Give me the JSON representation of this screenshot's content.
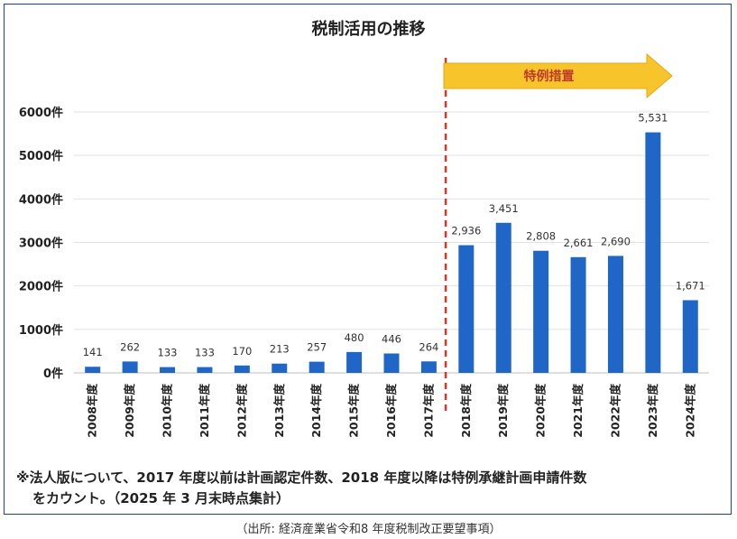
{
  "chart_data": {
    "type": "bar",
    "title": "税制活用の推移",
    "categories": [
      "2008年度",
      "2009年度",
      "2010年度",
      "2011年度",
      "2012年度",
      "2013年度",
      "2014年度",
      "2015年度",
      "2016年度",
      "2017年度",
      "2018年度",
      "2019年度",
      "2020年度",
      "2021年度",
      "2022年度",
      "2023年度",
      "2024年度"
    ],
    "values": [
      141,
      262,
      133,
      133,
      170,
      213,
      257,
      480,
      446,
      264,
      2936,
      3451,
      2808,
      2661,
      2690,
      5531,
      1671
    ],
    "data_labels": [
      "141",
      "262",
      "133",
      "133",
      "170",
      "213",
      "257",
      "480",
      "446",
      "264",
      "2,936",
      "3,451",
      "2,808",
      "2,661",
      "2,690",
      "5,531",
      "1,671"
    ],
    "ytick_labels": [
      "0件",
      "1000件",
      "2000件",
      "3000件",
      "4000件",
      "5000件",
      "6000件"
    ],
    "yticks": [
      0,
      1000,
      2000,
      3000,
      4000,
      5000,
      6000
    ],
    "ylim": [
      0,
      6000
    ],
    "grid": true,
    "bar_color": "#1f66c7",
    "annotation": {
      "label": "特例措置",
      "divider_after": "2017年度",
      "divider_color": "#e0342b",
      "arrow_color": "#f7c52b"
    }
  },
  "notes": {
    "line1": "※法人版について、2017 年度以前は計画認定件数、2018 年度以降は特例承継計画申請件数",
    "line2": "をカウント。（2025 年 3 月末時点集計）"
  },
  "source": "（出所: 経済産業省令和8 年度税制改正要望事項）"
}
